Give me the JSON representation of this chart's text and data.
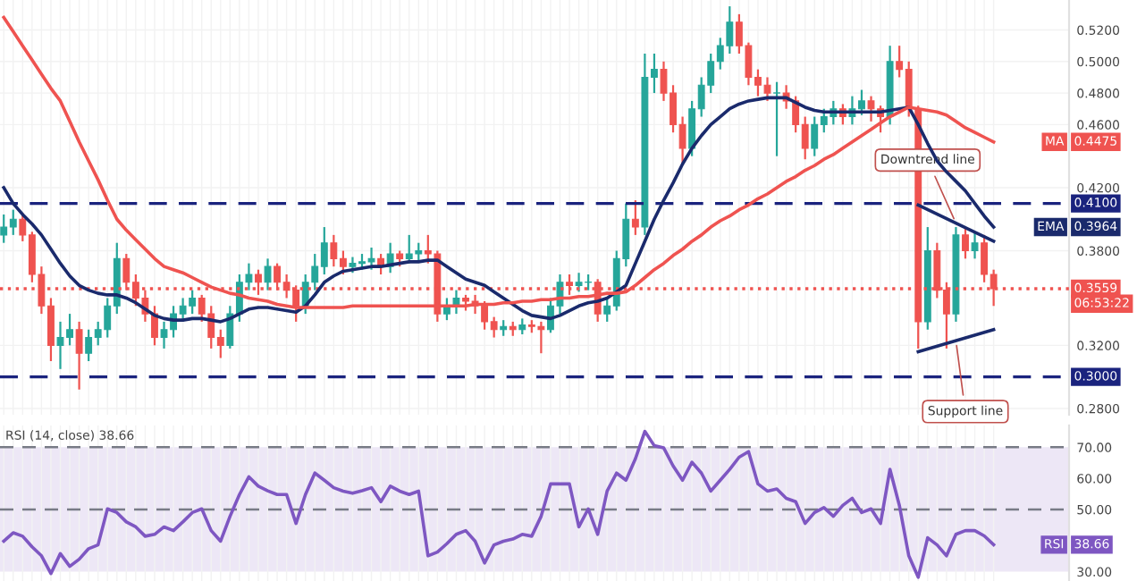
{
  "chart_data": [
    {
      "type": "candlestick",
      "categories": [
        null,
        null,
        null,
        null,
        null,
        null,
        null,
        null,
        null,
        null,
        null,
        null,
        null,
        null,
        null,
        null,
        null,
        null,
        null,
        null,
        null,
        null,
        null,
        null,
        null,
        null,
        null,
        null,
        null,
        null,
        null,
        null,
        null,
        null,
        null,
        null,
        null,
        null,
        null,
        null,
        null,
        null,
        null,
        null,
        null,
        null,
        null,
        null,
        null,
        null,
        null,
        null,
        null,
        null,
        null,
        null,
        null,
        null,
        null,
        null,
        null,
        null,
        null,
        null,
        null,
        null,
        null,
        null,
        null,
        null,
        null,
        null,
        null,
        null,
        null,
        null,
        null,
        null,
        null,
        null,
        null,
        null,
        null,
        null,
        null,
        null,
        null,
        null,
        null,
        null,
        null,
        null,
        null,
        null,
        null,
        null,
        null,
        null,
        null,
        null,
        null,
        null,
        null,
        null,
        null,
        null
      ],
      "ohlc": [
        [
          0.39,
          0.403,
          0.385,
          0.395
        ],
        [
          0.395,
          0.406,
          0.39,
          0.4
        ],
        [
          0.4,
          0.404,
          0.386,
          0.39
        ],
        [
          0.39,
          0.392,
          0.36,
          0.365
        ],
        [
          0.365,
          0.37,
          0.34,
          0.345
        ],
        [
          0.345,
          0.35,
          0.31,
          0.32
        ],
        [
          0.32,
          0.335,
          0.305,
          0.325
        ],
        [
          0.325,
          0.34,
          0.32,
          0.33
        ],
        [
          0.33,
          0.335,
          0.292,
          0.315
        ],
        [
          0.315,
          0.33,
          0.31,
          0.325
        ],
        [
          0.325,
          0.335,
          0.32,
          0.33
        ],
        [
          0.33,
          0.35,
          0.325,
          0.345
        ],
        [
          0.345,
          0.385,
          0.34,
          0.375
        ],
        [
          0.375,
          0.378,
          0.355,
          0.36
        ],
        [
          0.36,
          0.365,
          0.345,
          0.35
        ],
        [
          0.35,
          0.355,
          0.335,
          0.34
        ],
        [
          0.34,
          0.345,
          0.32,
          0.325
        ],
        [
          0.325,
          0.335,
          0.318,
          0.33
        ],
        [
          0.33,
          0.345,
          0.325,
          0.34
        ],
        [
          0.34,
          0.35,
          0.335,
          0.345
        ],
        [
          0.345,
          0.355,
          0.34,
          0.35
        ],
        [
          0.35,
          0.352,
          0.335,
          0.34
        ],
        [
          0.34,
          0.345,
          0.318,
          0.325
        ],
        [
          0.325,
          0.33,
          0.312,
          0.32
        ],
        [
          0.32,
          0.345,
          0.318,
          0.34
        ],
        [
          0.34,
          0.365,
          0.335,
          0.36
        ],
        [
          0.36,
          0.372,
          0.355,
          0.365
        ],
        [
          0.365,
          0.368,
          0.352,
          0.36
        ],
        [
          0.36,
          0.375,
          0.355,
          0.37
        ],
        [
          0.37,
          0.372,
          0.355,
          0.36
        ],
        [
          0.36,
          0.365,
          0.35,
          0.355
        ],
        [
          0.355,
          0.358,
          0.335,
          0.345
        ],
        [
          0.345,
          0.365,
          0.34,
          0.36
        ],
        [
          0.36,
          0.378,
          0.355,
          0.37
        ],
        [
          0.37,
          0.395,
          0.365,
          0.385
        ],
        [
          0.385,
          0.39,
          0.37,
          0.375
        ],
        [
          0.375,
          0.38,
          0.365,
          0.37
        ],
        [
          0.37,
          0.376,
          0.366,
          0.372
        ],
        [
          0.372,
          0.378,
          0.368,
          0.373
        ],
        [
          0.373,
          0.382,
          0.368,
          0.375
        ],
        [
          0.375,
          0.378,
          0.365,
          0.37
        ],
        [
          0.37,
          0.385,
          0.366,
          0.378
        ],
        [
          0.378,
          0.38,
          0.37,
          0.375
        ],
        [
          0.375,
          0.39,
          0.372,
          0.378
        ],
        [
          0.378,
          0.385,
          0.374,
          0.38
        ],
        [
          0.38,
          0.39,
          0.372,
          0.378
        ],
        [
          0.378,
          0.38,
          0.335,
          0.34
        ],
        [
          0.34,
          0.35,
          0.336,
          0.345
        ],
        [
          0.345,
          0.355,
          0.34,
          0.35
        ],
        [
          0.35,
          0.352,
          0.342,
          0.348
        ],
        [
          0.348,
          0.352,
          0.34,
          0.345
        ],
        [
          0.345,
          0.348,
          0.33,
          0.335
        ],
        [
          0.335,
          0.338,
          0.325,
          0.33
        ],
        [
          0.33,
          0.336,
          0.326,
          0.332
        ],
        [
          0.332,
          0.335,
          0.326,
          0.33
        ],
        [
          0.33,
          0.337,
          0.327,
          0.333
        ],
        [
          0.333,
          0.336,
          0.328,
          0.332
        ],
        [
          0.332,
          0.335,
          0.315,
          0.33
        ],
        [
          0.33,
          0.35,
          0.328,
          0.345
        ],
        [
          0.345,
          0.365,
          0.34,
          0.36
        ],
        [
          0.36,
          0.365,
          0.352,
          0.358
        ],
        [
          0.358,
          0.366,
          0.354,
          0.36
        ],
        [
          0.36,
          0.365,
          0.355,
          0.36
        ],
        [
          0.36,
          0.362,
          0.335,
          0.34
        ],
        [
          0.34,
          0.35,
          0.335,
          0.345
        ],
        [
          0.345,
          0.38,
          0.342,
          0.375
        ],
        [
          0.375,
          0.41,
          0.37,
          0.4
        ],
        [
          0.4,
          0.412,
          0.39,
          0.395
        ],
        [
          0.395,
          0.505,
          0.39,
          0.49
        ],
        [
          0.49,
          0.505,
          0.48,
          0.495
        ],
        [
          0.495,
          0.5,
          0.475,
          0.48
        ],
        [
          0.48,
          0.485,
          0.455,
          0.46
        ],
        [
          0.46,
          0.465,
          0.435,
          0.445
        ],
        [
          0.445,
          0.475,
          0.44,
          0.47
        ],
        [
          0.47,
          0.49,
          0.465,
          0.485
        ],
        [
          0.485,
          0.505,
          0.48,
          0.5
        ],
        [
          0.5,
          0.515,
          0.495,
          0.51
        ],
        [
          0.51,
          0.535,
          0.505,
          0.525
        ],
        [
          0.525,
          0.53,
          0.505,
          0.51
        ],
        [
          0.51,
          0.512,
          0.485,
          0.49
        ],
        [
          0.49,
          0.495,
          0.478,
          0.485
        ],
        [
          0.485,
          0.49,
          0.475,
          0.48
        ],
        [
          0.48,
          0.487,
          0.44,
          0.48
        ],
        [
          0.48,
          0.485,
          0.47,
          0.475
        ],
        [
          0.475,
          0.478,
          0.455,
          0.46
        ],
        [
          0.46,
          0.465,
          0.438,
          0.445
        ],
        [
          0.445,
          0.465,
          0.44,
          0.46
        ],
        [
          0.46,
          0.47,
          0.455,
          0.465
        ],
        [
          0.465,
          0.475,
          0.46,
          0.47
        ],
        [
          0.47,
          0.473,
          0.46,
          0.465
        ],
        [
          0.465,
          0.478,
          0.46,
          0.47
        ],
        [
          0.47,
          0.482,
          0.466,
          0.475
        ],
        [
          0.475,
          0.478,
          0.462,
          0.47
        ],
        [
          0.47,
          0.472,
          0.455,
          0.465
        ],
        [
          0.465,
          0.51,
          0.46,
          0.5
        ],
        [
          0.5,
          0.51,
          0.49,
          0.495
        ],
        [
          0.495,
          0.5,
          0.465,
          0.47
        ],
        [
          0.47,
          0.472,
          0.318,
          0.335
        ],
        [
          0.335,
          0.395,
          0.33,
          0.38
        ],
        [
          0.38,
          0.385,
          0.35,
          0.355
        ],
        [
          0.355,
          0.36,
          0.318,
          0.34
        ],
        [
          0.34,
          0.395,
          0.335,
          0.39
        ],
        [
          0.39,
          0.395,
          0.375,
          0.38
        ],
        [
          0.38,
          0.392,
          0.375,
          0.385
        ],
        [
          0.385,
          0.39,
          0.36,
          0.365
        ],
        [
          0.365,
          0.368,
          0.345,
          0.3559
        ]
      ],
      "series": [
        {
          "name": "EMA",
          "type": "line",
          "color": "#1a2a6c",
          "values": [
            0.42,
            0.41,
            0.403,
            0.397,
            0.39,
            0.381,
            0.372,
            0.364,
            0.358,
            0.355,
            0.353,
            0.352,
            0.352,
            0.35,
            0.347,
            0.343,
            0.339,
            0.337,
            0.336,
            0.336,
            0.337,
            0.337,
            0.336,
            0.335,
            0.337,
            0.34,
            0.343,
            0.344,
            0.344,
            0.343,
            0.342,
            0.341,
            0.345,
            0.352,
            0.36,
            0.364,
            0.367,
            0.368,
            0.369,
            0.37,
            0.37,
            0.371,
            0.372,
            0.373,
            0.373,
            0.374,
            0.374,
            0.37,
            0.366,
            0.362,
            0.36,
            0.358,
            0.354,
            0.35,
            0.346,
            0.342,
            0.339,
            0.338,
            0.337,
            0.339,
            0.342,
            0.345,
            0.347,
            0.348,
            0.35,
            0.354,
            0.358,
            0.372,
            0.386,
            0.4,
            0.412,
            0.423,
            0.435,
            0.445,
            0.453,
            0.46,
            0.465,
            0.47,
            0.473,
            0.475,
            0.476,
            0.477,
            0.477,
            0.477,
            0.474,
            0.471,
            0.469,
            0.468,
            0.468,
            0.468,
            0.468,
            0.468,
            0.468,
            0.468,
            0.469,
            0.47,
            0.471,
            0.46,
            0.448,
            0.437,
            0.43,
            0.424,
            0.418,
            0.41,
            0.402,
            0.395
          ]
        },
        {
          "name": "MA",
          "type": "line",
          "color": "#ef5350",
          "values": [
            0.528,
            0.519,
            0.51,
            0.501,
            0.492,
            0.483,
            0.475,
            0.462,
            0.449,
            0.437,
            0.425,
            0.412,
            0.4,
            0.393,
            0.387,
            0.381,
            0.375,
            0.37,
            0.368,
            0.366,
            0.363,
            0.36,
            0.357,
            0.355,
            0.353,
            0.352,
            0.35,
            0.349,
            0.348,
            0.346,
            0.345,
            0.344,
            0.344,
            0.344,
            0.344,
            0.344,
            0.344,
            0.345,
            0.345,
            0.345,
            0.345,
            0.345,
            0.345,
            0.345,
            0.345,
            0.345,
            0.345,
            0.345,
            0.345,
            0.345,
            0.346,
            0.346,
            0.346,
            0.347,
            0.347,
            0.348,
            0.348,
            0.349,
            0.349,
            0.35,
            0.35,
            0.351,
            0.351,
            0.352,
            0.353,
            0.353,
            0.354,
            0.358,
            0.363,
            0.368,
            0.372,
            0.377,
            0.381,
            0.386,
            0.39,
            0.395,
            0.399,
            0.402,
            0.406,
            0.409,
            0.413,
            0.416,
            0.42,
            0.424,
            0.427,
            0.431,
            0.434,
            0.438,
            0.441,
            0.445,
            0.449,
            0.453,
            0.457,
            0.461,
            0.465,
            0.468,
            0.471,
            0.47,
            0.469,
            0.468,
            0.466,
            0.462,
            0.458,
            0.455,
            0.452,
            0.449
          ]
        },
        {
          "type": "line",
          "color": "#1a2a6c",
          "values": [
            null,
            null,
            null,
            null,
            null,
            null,
            null,
            null,
            null,
            null,
            null,
            null,
            null,
            null,
            null,
            null,
            null,
            null,
            null,
            null,
            null,
            null,
            null,
            null,
            null,
            null,
            null,
            null,
            null,
            null,
            null,
            null,
            null,
            null,
            null,
            null,
            null,
            null,
            null,
            null,
            null,
            null,
            null,
            null,
            null,
            null,
            null,
            null,
            null,
            null,
            null,
            null,
            null,
            null,
            null,
            null,
            null,
            null,
            null,
            null,
            null,
            null,
            null,
            null,
            null,
            null,
            null,
            null,
            null,
            null,
            null,
            null,
            null,
            null,
            null,
            null,
            null,
            null,
            null,
            null,
            null,
            null,
            null,
            null,
            null,
            null,
            null,
            null,
            null,
            null,
            null,
            null,
            null,
            null,
            null,
            null,
            null,
            0.409,
            null,
            null,
            null,
            null,
            null,
            null,
            null,
            0.386
          ]
        },
        {
          "type": "line",
          "color": "#1a2a6c",
          "values": [
            null,
            null,
            null,
            null,
            null,
            null,
            null,
            null,
            null,
            null,
            null,
            null,
            null,
            null,
            null,
            null,
            null,
            null,
            null,
            null,
            null,
            null,
            null,
            null,
            null,
            null,
            null,
            null,
            null,
            null,
            null,
            null,
            null,
            null,
            null,
            null,
            null,
            null,
            null,
            null,
            null,
            null,
            null,
            null,
            null,
            null,
            null,
            null,
            null,
            null,
            null,
            null,
            null,
            null,
            null,
            null,
            null,
            null,
            null,
            null,
            null,
            null,
            null,
            null,
            null,
            null,
            null,
            null,
            null,
            null,
            null,
            null,
            null,
            null,
            null,
            null,
            null,
            null,
            null,
            null,
            null,
            null,
            null,
            null,
            null,
            null,
            null,
            null,
            null,
            null,
            null,
            null,
            null,
            null,
            null,
            null,
            null,
            0.316,
            null,
            null,
            null,
            null,
            null,
            null,
            null,
            0.33
          ]
        }
      ],
      "ylim": [
        0.276,
        0.539
      ],
      "yticks": [
        {
          "value": 0.28,
          "label": "0.2800"
        },
        {
          "value": 0.32,
          "label": "0.3200"
        },
        {
          "value": 0.38,
          "label": "0.3800"
        },
        {
          "value": 0.42,
          "label": "0.4200"
        },
        {
          "value": 0.46,
          "label": "0.4600"
        },
        {
          "value": 0.48,
          "label": "0.4800"
        },
        {
          "value": 0.5,
          "label": "0.5000"
        },
        {
          "value": 0.52,
          "label": "0.5200"
        }
      ],
      "ref_lines": [
        {
          "axis": "y",
          "value": 0.41,
          "label": "0.4100",
          "color": "#1a237e",
          "line_style": "dashed"
        },
        {
          "axis": "y",
          "value": 0.3,
          "label": "0.3000",
          "color": "#1a237e",
          "line_style": "dashed"
        },
        {
          "axis": "y",
          "value": 0.3559,
          "label": "0.3559",
          "color": "#ef5350",
          "line_style": "dotted"
        }
      ],
      "annotations": [
        "Downtrend line",
        "Support line",
        "06:53:22",
        "0.3964",
        "0.4475"
      ],
      "legend": "right",
      "grid": true,
      "tick_labels": "y"
    },
    {
      "type": "line",
      "title": "RSI (14, close) 38.66",
      "categories": [
        null,
        null,
        null,
        null,
        null,
        null,
        null,
        null,
        null,
        null,
        null,
        null,
        null,
        null,
        null,
        null,
        null,
        null,
        null,
        null,
        null,
        null,
        null,
        null,
        null,
        null,
        null,
        null,
        null,
        null,
        null,
        null,
        null,
        null,
        null,
        null,
        null,
        null,
        null,
        null,
        null,
        null,
        null,
        null,
        null,
        null,
        null,
        null,
        null,
        null,
        null,
        null,
        null,
        null,
        null,
        null,
        null,
        null,
        null,
        null,
        null,
        null,
        null,
        null,
        null,
        null,
        null,
        null,
        null,
        null,
        null,
        null,
        null,
        null,
        null,
        null,
        null,
        null,
        null,
        null,
        null,
        null,
        null,
        null,
        null,
        null,
        null,
        null,
        null,
        null,
        null,
        null,
        null,
        null,
        null,
        null,
        null,
        null,
        null,
        null,
        null,
        null,
        null,
        null,
        null,
        null
      ],
      "series": [
        {
          "name": "RSI",
          "color": "#7e57c2",
          "values": [
            39.8,
            42.5,
            41.4,
            38,
            35.1,
            29.4,
            35.8,
            31.7,
            34,
            37.4,
            38.6,
            50.2,
            49,
            46,
            44.4,
            41.4,
            42,
            44.4,
            43.2,
            46,
            49,
            50.2,
            43.2,
            39.8,
            47.8,
            54.8,
            60.5,
            57.5,
            56,
            54.8,
            54.8,
            45.5,
            54.8,
            61.7,
            59.4,
            57,
            55.9,
            55.2,
            56,
            57,
            52.5,
            57.5,
            55.9,
            54.8,
            55.9,
            35.1,
            36.3,
            39,
            42,
            43.2,
            39.8,
            32.8,
            38.6,
            39.8,
            40.5,
            42,
            41.4,
            47.8,
            58.2,
            58.2,
            58.2,
            44.4,
            50.2,
            42,
            55.9,
            61.7,
            59.4,
            66.3,
            75.1,
            70.5,
            69.8,
            64,
            59.4,
            65.2,
            61.7,
            55.9,
            59.4,
            62.9,
            66.8,
            68.6,
            58.2,
            55.9,
            56.6,
            53.6,
            52.5,
            45.5,
            49,
            50.6,
            47.8,
            51.3,
            53.6,
            49,
            50.2,
            45.5,
            62.9,
            51.3,
            35.1,
            28.2,
            40.9,
            38.6,
            35.1,
            42,
            43.2,
            43.2,
            41.5,
            38.66
          ]
        }
      ],
      "ylim": [
        27,
        77
      ],
      "yticks": [
        {
          "value": 30,
          "label": "30.00"
        },
        {
          "value": 50,
          "label": "50.00"
        },
        {
          "value": 60,
          "label": "60.00"
        },
        {
          "value": 70,
          "label": "70.00"
        }
      ],
      "ref_lines": [
        {
          "axis": "y",
          "value": 70,
          "color": "#787b86",
          "line_style": "dashed"
        },
        {
          "axis": "y",
          "value": 50,
          "color": "#787b86",
          "line_style": "dashed"
        }
      ],
      "bands": [
        {
          "axis": "y",
          "from": 30,
          "to": 70,
          "color": "#ede7f6"
        }
      ],
      "annotations": [
        "38.66"
      ],
      "legend": "right",
      "grid": "x",
      "tick_labels": "y"
    }
  ]
}
